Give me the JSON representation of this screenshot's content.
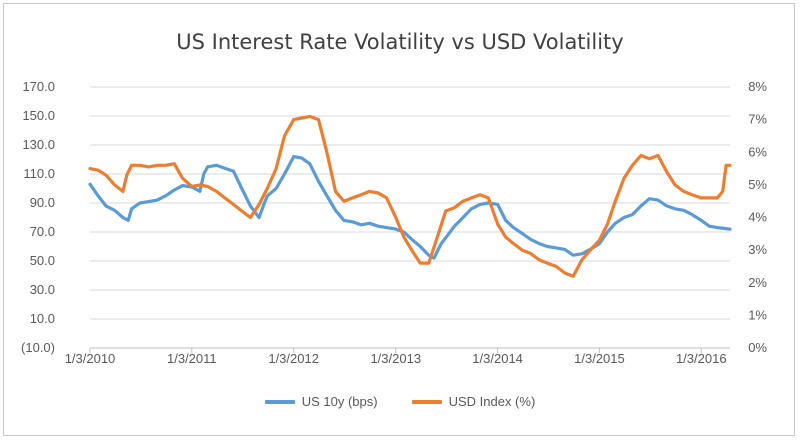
{
  "chart_data": {
    "type": "line",
    "title": "US Interest Rate Volatility vs USD Volatility",
    "x_ticks": [
      "1/3/2010",
      "1/3/2011",
      "1/3/2012",
      "1/3/2013",
      "1/3/2014",
      "1/3/2015",
      "1/3/2016"
    ],
    "x_range": [
      "2010-01-03",
      "2016-04-15"
    ],
    "y_left": {
      "ticks": [
        "170.0",
        "150.0",
        "130.0",
        "110.0",
        "90.0",
        "70.0",
        "50.0",
        "30.0",
        "10.0",
        "(10.0)"
      ],
      "range": [
        -10,
        170
      ]
    },
    "y_right": {
      "ticks": [
        "8%",
        "7%",
        "6%",
        "5%",
        "4%",
        "3%",
        "2%",
        "1%",
        "0%"
      ],
      "range": [
        0,
        8
      ]
    },
    "grid": "horizontal",
    "legend_position": "bottom",
    "series": [
      {
        "name": "US 10y (bps)",
        "axis": "left",
        "color": "#5b9bd5",
        "points": [
          [
            "2010-01-03",
            103
          ],
          [
            "2010-02-01",
            95
          ],
          [
            "2010-03-01",
            88
          ],
          [
            "2010-04-01",
            85
          ],
          [
            "2010-05-01",
            80
          ],
          [
            "2010-05-20",
            78
          ],
          [
            "2010-06-01",
            86
          ],
          [
            "2010-07-01",
            90
          ],
          [
            "2010-08-01",
            91
          ],
          [
            "2010-09-01",
            92
          ],
          [
            "2010-10-01",
            95
          ],
          [
            "2010-11-01",
            99
          ],
          [
            "2010-12-01",
            102
          ],
          [
            "2011-01-03",
            101
          ],
          [
            "2011-02-01",
            98
          ],
          [
            "2011-02-15",
            110
          ],
          [
            "2011-03-01",
            115
          ],
          [
            "2011-04-01",
            116
          ],
          [
            "2011-05-01",
            114
          ],
          [
            "2011-06-01",
            112
          ],
          [
            "2011-07-01",
            100
          ],
          [
            "2011-08-01",
            88
          ],
          [
            "2011-08-20",
            83
          ],
          [
            "2011-09-01",
            80
          ],
          [
            "2011-09-20",
            90
          ],
          [
            "2011-10-01",
            95
          ],
          [
            "2011-11-01",
            100
          ],
          [
            "2011-12-01",
            110
          ],
          [
            "2012-01-03",
            122
          ],
          [
            "2012-02-01",
            121
          ],
          [
            "2012-03-01",
            117
          ],
          [
            "2012-04-01",
            105
          ],
          [
            "2012-05-01",
            95
          ],
          [
            "2012-06-01",
            85
          ],
          [
            "2012-07-01",
            78
          ],
          [
            "2012-08-01",
            77
          ],
          [
            "2012-09-01",
            75
          ],
          [
            "2012-10-01",
            76
          ],
          [
            "2012-11-01",
            74
          ],
          [
            "2012-12-01",
            73
          ],
          [
            "2013-01-03",
            72
          ],
          [
            "2013-02-01",
            70
          ],
          [
            "2013-03-01",
            65
          ],
          [
            "2013-04-01",
            60
          ],
          [
            "2013-05-01",
            54
          ],
          [
            "2013-05-20",
            52
          ],
          [
            "2013-06-15",
            62
          ],
          [
            "2013-07-01",
            66
          ],
          [
            "2013-08-01",
            74
          ],
          [
            "2013-09-01",
            80
          ],
          [
            "2013-10-01",
            86
          ],
          [
            "2013-11-01",
            89
          ],
          [
            "2013-12-01",
            90
          ],
          [
            "2014-01-03",
            89
          ],
          [
            "2014-02-01",
            78
          ],
          [
            "2014-03-01",
            73
          ],
          [
            "2014-04-01",
            69
          ],
          [
            "2014-05-01",
            65
          ],
          [
            "2014-06-01",
            62
          ],
          [
            "2014-07-01",
            60
          ],
          [
            "2014-08-01",
            59
          ],
          [
            "2014-09-01",
            58
          ],
          [
            "2014-10-01",
            54
          ],
          [
            "2014-11-01",
            55
          ],
          [
            "2014-12-01",
            58
          ],
          [
            "2015-01-03",
            62
          ],
          [
            "2015-02-01",
            70
          ],
          [
            "2015-03-01",
            76
          ],
          [
            "2015-04-01",
            80
          ],
          [
            "2015-05-01",
            82
          ],
          [
            "2015-06-01",
            88
          ],
          [
            "2015-07-01",
            93
          ],
          [
            "2015-08-01",
            92
          ],
          [
            "2015-09-01",
            88
          ],
          [
            "2015-10-01",
            86
          ],
          [
            "2015-11-01",
            85
          ],
          [
            "2015-12-01",
            82
          ],
          [
            "2016-01-03",
            78
          ],
          [
            "2016-02-01",
            74
          ],
          [
            "2016-03-01",
            73
          ],
          [
            "2016-04-15",
            72
          ]
        ]
      },
      {
        "name": "USD Index (%)",
        "axis": "right",
        "color": "#ed7d31",
        "points": [
          [
            "2010-01-03",
            5.5
          ],
          [
            "2010-02-01",
            5.45
          ],
          [
            "2010-03-01",
            5.3
          ],
          [
            "2010-04-01",
            5.0
          ],
          [
            "2010-05-01",
            4.8
          ],
          [
            "2010-05-15",
            5.3
          ],
          [
            "2010-06-01",
            5.6
          ],
          [
            "2010-07-01",
            5.6
          ],
          [
            "2010-08-01",
            5.55
          ],
          [
            "2010-09-01",
            5.6
          ],
          [
            "2010-10-01",
            5.6
          ],
          [
            "2010-11-01",
            5.65
          ],
          [
            "2010-12-01",
            5.2
          ],
          [
            "2011-01-03",
            4.95
          ],
          [
            "2011-02-01",
            5.0
          ],
          [
            "2011-03-01",
            4.95
          ],
          [
            "2011-04-01",
            4.8
          ],
          [
            "2011-05-01",
            4.6
          ],
          [
            "2011-06-01",
            4.4
          ],
          [
            "2011-07-01",
            4.2
          ],
          [
            "2011-08-01",
            4.0
          ],
          [
            "2011-09-01",
            4.4
          ],
          [
            "2011-10-01",
            4.9
          ],
          [
            "2011-11-01",
            5.5
          ],
          [
            "2011-12-01",
            6.5
          ],
          [
            "2012-01-03",
            7.0
          ],
          [
            "2012-02-01",
            7.05
          ],
          [
            "2012-03-01",
            7.1
          ],
          [
            "2012-04-01",
            7.0
          ],
          [
            "2012-05-01",
            6.0
          ],
          [
            "2012-06-01",
            4.8
          ],
          [
            "2012-07-01",
            4.5
          ],
          [
            "2012-08-01",
            4.6
          ],
          [
            "2012-09-01",
            4.7
          ],
          [
            "2012-10-01",
            4.8
          ],
          [
            "2012-11-01",
            4.75
          ],
          [
            "2012-12-01",
            4.6
          ],
          [
            "2013-01-03",
            4.0
          ],
          [
            "2013-02-01",
            3.4
          ],
          [
            "2013-03-01",
            3.0
          ],
          [
            "2013-04-01",
            2.6
          ],
          [
            "2013-05-01",
            2.6
          ],
          [
            "2013-06-01",
            3.4
          ],
          [
            "2013-07-01",
            4.2
          ],
          [
            "2013-08-01",
            4.3
          ],
          [
            "2013-09-01",
            4.5
          ],
          [
            "2013-10-01",
            4.6
          ],
          [
            "2013-11-01",
            4.7
          ],
          [
            "2013-12-01",
            4.6
          ],
          [
            "2014-01-03",
            3.8
          ],
          [
            "2014-02-01",
            3.4
          ],
          [
            "2014-03-01",
            3.2
          ],
          [
            "2014-04-01",
            3.0
          ],
          [
            "2014-05-01",
            2.9
          ],
          [
            "2014-06-01",
            2.7
          ],
          [
            "2014-07-01",
            2.6
          ],
          [
            "2014-08-01",
            2.5
          ],
          [
            "2014-09-01",
            2.3
          ],
          [
            "2014-10-01",
            2.2
          ],
          [
            "2014-11-01",
            2.7
          ],
          [
            "2014-12-01",
            3.0
          ],
          [
            "2015-01-03",
            3.3
          ],
          [
            "2015-02-01",
            3.8
          ],
          [
            "2015-03-01",
            4.5
          ],
          [
            "2015-04-01",
            5.2
          ],
          [
            "2015-05-01",
            5.6
          ],
          [
            "2015-06-01",
            5.9
          ],
          [
            "2015-07-01",
            5.8
          ],
          [
            "2015-08-01",
            5.9
          ],
          [
            "2015-09-01",
            5.4
          ],
          [
            "2015-10-01",
            5.0
          ],
          [
            "2015-11-01",
            4.8
          ],
          [
            "2015-12-01",
            4.7
          ],
          [
            "2016-01-03",
            4.6
          ],
          [
            "2016-02-01",
            4.6
          ],
          [
            "2016-03-01",
            4.6
          ],
          [
            "2016-03-20",
            4.8
          ],
          [
            "2016-04-01",
            5.6
          ],
          [
            "2016-04-15",
            5.6
          ]
        ]
      }
    ]
  }
}
